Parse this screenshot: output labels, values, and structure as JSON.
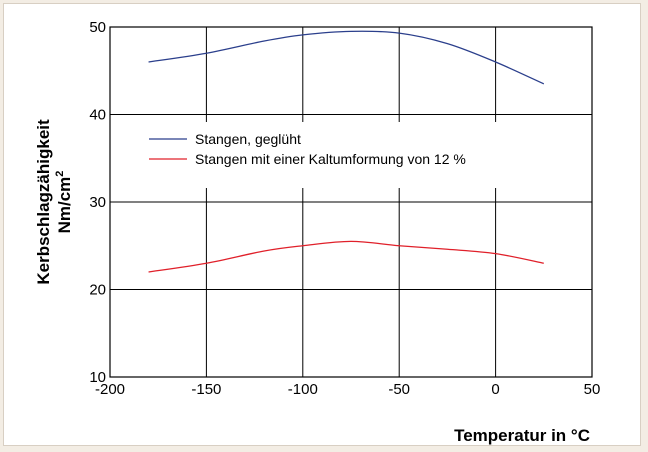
{
  "chart_data": {
    "type": "line",
    "xlabel": "Temperatur in °C",
    "ylabel_line1": "Kerbschlagzähigkeit",
    "ylabel_line2_base": "Nm/cm",
    "ylabel_line2_sup": "2",
    "xlim": [
      -200,
      50
    ],
    "ylim": [
      10,
      50
    ],
    "x_ticks": [
      -200,
      -150,
      -100,
      -50,
      0,
      50
    ],
    "x_tick_labels": [
      "-200",
      "-150",
      "-100",
      "-50",
      "0",
      "50"
    ],
    "y_ticks": [
      10,
      20,
      30,
      40,
      50
    ],
    "y_tick_labels": [
      "10",
      "20",
      "30",
      "40",
      "50"
    ],
    "grid": true,
    "legend_position": "center-left",
    "series": [
      {
        "name": "Stangen, geglüht",
        "color": "#2b3f8c",
        "x": [
          -180,
          -150,
          -120,
          -100,
          -75,
          -50,
          -25,
          0,
          25
        ],
        "y": [
          46.0,
          47.0,
          48.4,
          49.1,
          49.5,
          49.3,
          48.1,
          46.0,
          43.5
        ]
      },
      {
        "name": "Stangen mit einer Kaltumformung von 12 %",
        "color": "#e0202a",
        "x": [
          -180,
          -150,
          -120,
          -100,
          -75,
          -50,
          -25,
          0,
          25
        ],
        "y": [
          22.0,
          23.0,
          24.4,
          25.0,
          25.5,
          25.0,
          24.6,
          24.1,
          23.0
        ]
      }
    ]
  }
}
